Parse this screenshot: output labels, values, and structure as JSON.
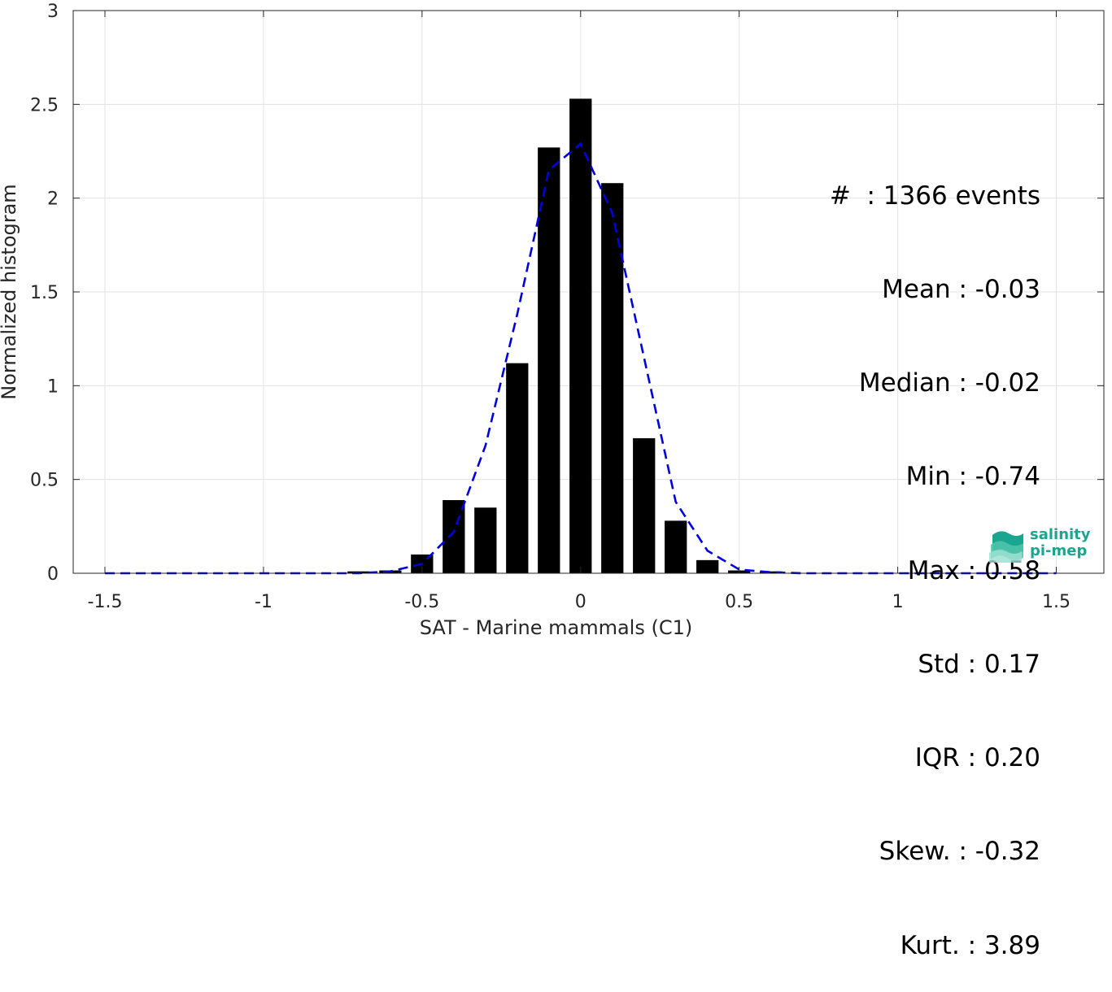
{
  "chart_data": {
    "type": "bar",
    "xlabel": "SAT - Marine mammals (C1)",
    "ylabel": "Normalized histogram",
    "xlim": [
      -1.6,
      1.65
    ],
    "ylim": [
      0,
      3
    ],
    "xticks": [
      -1.5,
      -1,
      -0.5,
      0,
      0.5,
      1,
      1.5
    ],
    "xtick_labels": [
      "-1.5",
      "-1",
      "-0.5",
      "0",
      "0.5",
      "1",
      "1.5"
    ],
    "yticks": [
      0,
      0.5,
      1,
      1.5,
      2,
      2.5,
      3
    ],
    "ytick_labels": [
      "0",
      "0.5",
      "1",
      "1.5",
      "2",
      "2.5",
      "3"
    ],
    "grid": true,
    "bar_color": "#000000",
    "bar_width": 0.07,
    "bars": [
      {
        "x": -0.7,
        "y": 0.01
      },
      {
        "x": -0.6,
        "y": 0.015
      },
      {
        "x": -0.5,
        "y": 0.1
      },
      {
        "x": -0.4,
        "y": 0.39
      },
      {
        "x": -0.3,
        "y": 0.35
      },
      {
        "x": -0.2,
        "y": 1.12
      },
      {
        "x": -0.1,
        "y": 2.27
      },
      {
        "x": 0.0,
        "y": 2.53
      },
      {
        "x": 0.1,
        "y": 2.08
      },
      {
        "x": 0.2,
        "y": 0.72
      },
      {
        "x": 0.3,
        "y": 0.28
      },
      {
        "x": 0.4,
        "y": 0.07
      },
      {
        "x": 0.5,
        "y": 0.015
      },
      {
        "x": 0.6,
        "y": 0.01
      }
    ],
    "fit_line": {
      "style": "dashed",
      "color": "#0000dd",
      "points": [
        [
          -1.5,
          0
        ],
        [
          -0.7,
          0.0
        ],
        [
          -0.6,
          0.01
        ],
        [
          -0.5,
          0.05
        ],
        [
          -0.4,
          0.22
        ],
        [
          -0.3,
          0.68
        ],
        [
          -0.2,
          1.38
        ],
        [
          -0.1,
          2.15
        ],
        [
          0.0,
          2.29
        ],
        [
          0.1,
          1.92
        ],
        [
          0.2,
          1.15
        ],
        [
          0.3,
          0.38
        ],
        [
          0.4,
          0.12
        ],
        [
          0.5,
          0.02
        ],
        [
          0.6,
          0.005
        ],
        [
          0.7,
          0
        ],
        [
          1.5,
          0
        ]
      ]
    }
  },
  "stats": [
    {
      "label": "#  : 1366 events"
    },
    {
      "label": "Mean : -0.03"
    },
    {
      "label": "Median : -0.02"
    },
    {
      "label": "Min : -0.74"
    },
    {
      "label": "Max : 0.58"
    },
    {
      "label": "Std : 0.17"
    },
    {
      "label": "IQR : 0.20"
    },
    {
      "label": "Skew. : -0.32"
    },
    {
      "label": "Kurt. : 3.89"
    }
  ],
  "logo": {
    "line1": "salinity",
    "line2": "pi-mep",
    "color": "#1aa58e"
  }
}
